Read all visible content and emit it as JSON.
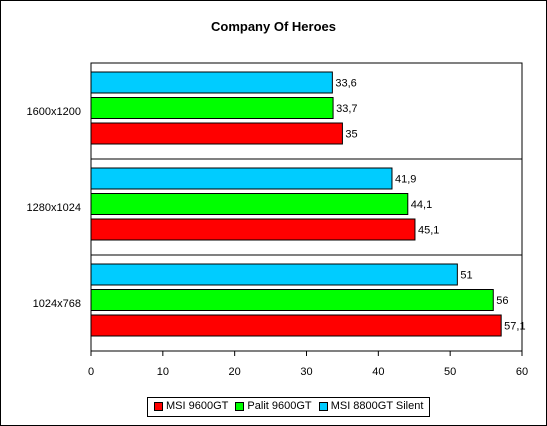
{
  "chart_data": {
    "type": "bar",
    "orientation": "horizontal",
    "title": "Company Of Heroes",
    "xlabel": "",
    "ylabel": "",
    "categories": [
      "1600x1200",
      "1280x1024",
      "1024x768"
    ],
    "series": [
      {
        "name": "MSI 9600GT",
        "color": "#ff0000",
        "values": [
          35,
          45.1,
          57.1
        ],
        "labels": [
          "35",
          "45,1",
          "57,1"
        ]
      },
      {
        "name": "Palit 9600GT",
        "color": "#00ff00",
        "values": [
          33.7,
          44.1,
          56
        ],
        "labels": [
          "33,7",
          "44,1",
          "56"
        ]
      },
      {
        "name": "MSI 8800GT Silent",
        "color": "#00ccff",
        "values": [
          33.6,
          41.9,
          51
        ],
        "labels": [
          "33,6",
          "41,9",
          "51"
        ]
      }
    ],
    "xlim": [
      0,
      60
    ],
    "x_ticks": [
      "0",
      "10",
      "20",
      "30",
      "40",
      "50",
      "60"
    ],
    "grid": false,
    "legend_position": "bottom"
  }
}
